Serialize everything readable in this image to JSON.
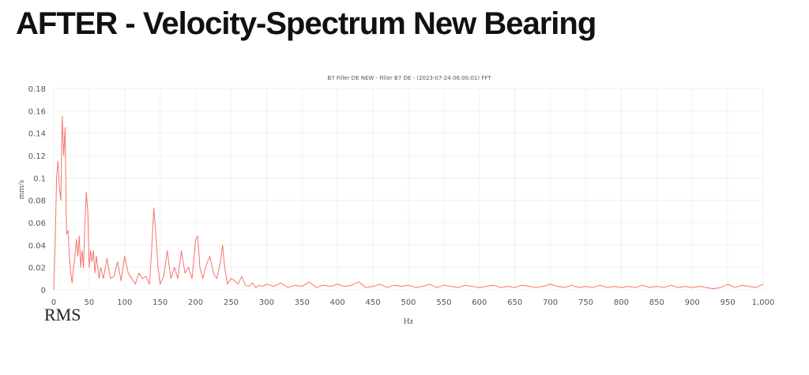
{
  "slide": {
    "title": "AFTER - Velocity-Spectrum New Bearing",
    "note": "RMS"
  },
  "colors": {
    "series": "#f4756b",
    "grid": "#f0f0f0",
    "text": "#555555"
  },
  "chart_data": {
    "type": "line",
    "title": "B7 Filler DE NEW - Filler B7 DE - (2023-07-24 06:00:01) FFT",
    "xlabel": "Hz",
    "ylabel": "mm/s",
    "xlim": [
      0,
      1000
    ],
    "ylim": [
      0,
      0.18
    ],
    "xticks": [
      "0",
      "50",
      "100",
      "150",
      "200",
      "250",
      "300",
      "350",
      "400",
      "450",
      "500",
      "550",
      "600",
      "650",
      "700",
      "750",
      "800",
      "850",
      "900",
      "950",
      "1,000"
    ],
    "yticks": [
      "0",
      "0.02",
      "0.04",
      "0.06",
      "0.08",
      "0.1",
      "0.12",
      "0.14",
      "0.16",
      "0.18"
    ],
    "grid": true,
    "series": [
      {
        "x": [
          0,
          2,
          4,
          6,
          8,
          10,
          12,
          14,
          16,
          18,
          20,
          22,
          24,
          26,
          28,
          30,
          32,
          34,
          36,
          38,
          40,
          42,
          44,
          46,
          48,
          50,
          52,
          54,
          56,
          58,
          60,
          62,
          64,
          66,
          68,
          70,
          75,
          80,
          85,
          90,
          95,
          100,
          105,
          110,
          115,
          120,
          125,
          130,
          135,
          138,
          141,
          144,
          147,
          150,
          155,
          160,
          165,
          170,
          175,
          180,
          185,
          190,
          195,
          200,
          203,
          206,
          210,
          215,
          220,
          225,
          230,
          235,
          238,
          241,
          245,
          250,
          255,
          260,
          265,
          270,
          275,
          280,
          285,
          290,
          295,
          300,
          310,
          320,
          330,
          340,
          350,
          360,
          370,
          380,
          390,
          400,
          410,
          420,
          430,
          440,
          450,
          460,
          470,
          480,
          490,
          500,
          510,
          520,
          530,
          540,
          550,
          560,
          570,
          580,
          590,
          600,
          610,
          620,
          630,
          640,
          650,
          660,
          670,
          680,
          690,
          700,
          710,
          720,
          730,
          740,
          750,
          760,
          770,
          780,
          790,
          800,
          810,
          820,
          830,
          840,
          850,
          860,
          870,
          880,
          890,
          900,
          910,
          920,
          930,
          940,
          950,
          960,
          970,
          980,
          990,
          1000
        ],
        "y": [
          0,
          0.04,
          0.1,
          0.115,
          0.09,
          0.08,
          0.155,
          0.12,
          0.145,
          0.05,
          0.053,
          0.03,
          0.015,
          0.006,
          0.02,
          0.03,
          0.045,
          0.03,
          0.048,
          0.02,
          0.035,
          0.02,
          0.06,
          0.087,
          0.07,
          0.02,
          0.035,
          0.025,
          0.035,
          0.015,
          0.03,
          0.02,
          0.01,
          0.02,
          0.015,
          0.01,
          0.028,
          0.01,
          0.012,
          0.025,
          0.008,
          0.03,
          0.015,
          0.01,
          0.005,
          0.015,
          0.01,
          0.012,
          0.005,
          0.035,
          0.073,
          0.05,
          0.02,
          0.005,
          0.012,
          0.035,
          0.01,
          0.02,
          0.01,
          0.035,
          0.015,
          0.02,
          0.01,
          0.045,
          0.048,
          0.02,
          0.01,
          0.022,
          0.03,
          0.015,
          0.01,
          0.025,
          0.04,
          0.02,
          0.005,
          0.01,
          0.008,
          0.005,
          0.012,
          0.004,
          0.003,
          0.006,
          0.002,
          0.004,
          0.003,
          0.005,
          0.003,
          0.006,
          0.002,
          0.004,
          0.003,
          0.007,
          0.002,
          0.004,
          0.003,
          0.005,
          0.003,
          0.004,
          0.007,
          0.002,
          0.003,
          0.005,
          0.002,
          0.004,
          0.003,
          0.004,
          0.002,
          0.003,
          0.005,
          0.002,
          0.004,
          0.003,
          0.002,
          0.004,
          0.003,
          0.002,
          0.003,
          0.004,
          0.002,
          0.003,
          0.002,
          0.004,
          0.003,
          0.002,
          0.003,
          0.005,
          0.003,
          0.002,
          0.004,
          0.002,
          0.003,
          0.002,
          0.004,
          0.002,
          0.003,
          0.002,
          0.003,
          0.002,
          0.004,
          0.002,
          0.003,
          0.002,
          0.004,
          0.002,
          0.003,
          0.002,
          0.003,
          0.002,
          0.001,
          0.002,
          0.005,
          0.002,
          0.004,
          0.003,
          0.002,
          0.005
        ]
      }
    ]
  }
}
